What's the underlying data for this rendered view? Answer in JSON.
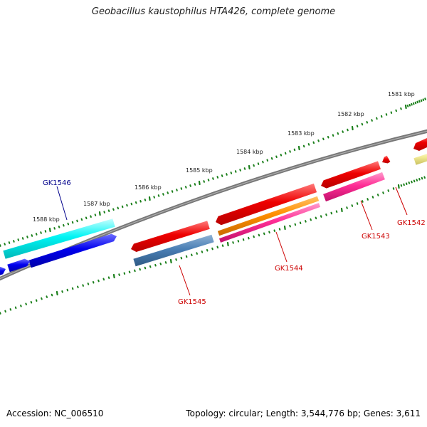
{
  "title": "Geobacillus kaustophilus HTA426, complete genome",
  "footer": {
    "accession": "Accession: NC_006510",
    "summary": "Topology: circular; Length: 3,544,776 bp; Genes: 3,611"
  },
  "colors": {
    "backbone": "#777777",
    "tick_dots": "#1a7f1a",
    "label_red": "#cc0000",
    "label_blue": "#00008b"
  },
  "kbp_labels": [
    "1581 kbp",
    "1582 kbp",
    "1583 kbp",
    "1584 kbp",
    "1585 kbp",
    "1586 kbp",
    "1587 kbp",
    "1588 kbp"
  ],
  "gene_labels": [
    {
      "text": "GK1546",
      "color": "#00008b"
    },
    {
      "text": "GK1545",
      "color": "#cc0000"
    },
    {
      "text": "GK1544",
      "color": "#cc0000"
    },
    {
      "text": "GK1543",
      "color": "#cc0000"
    },
    {
      "text": "GK1542",
      "color": "#cc0000"
    }
  ]
}
